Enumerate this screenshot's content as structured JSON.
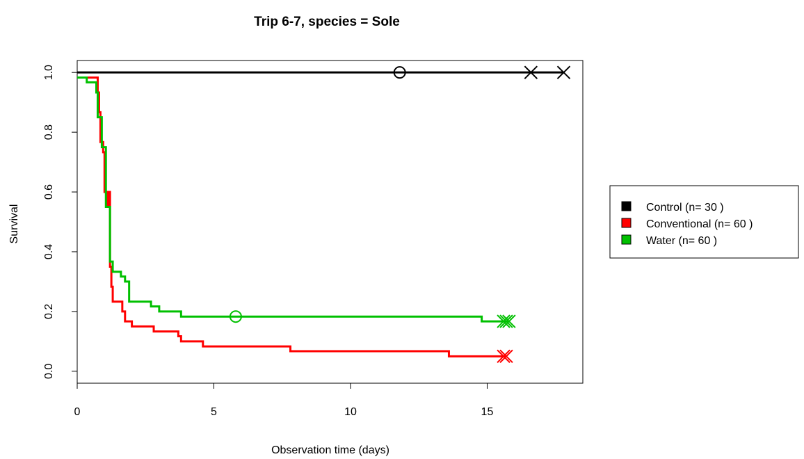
{
  "chart_data": {
    "type": "line",
    "subtype": "kaplan-meier step survival curves",
    "title": "Trip 6-7, species = Sole",
    "xlabel": "Observation time (days)",
    "ylabel": "Survival",
    "xlim": [
      0,
      18.5
    ],
    "ylim": [
      -0.04,
      1.04
    ],
    "xticks": [
      0,
      5,
      10,
      15
    ],
    "yticks": [
      0.0,
      0.2,
      0.4,
      0.6,
      0.8,
      1.0
    ],
    "ytick_labels": [
      "0.0",
      "0.2",
      "0.4",
      "0.6",
      "0.8",
      "1.0"
    ],
    "grid": false,
    "legend_position": "right, outside plot",
    "series": [
      {
        "name": "Control (n= 30 )",
        "color": "#000000",
        "steps": [
          [
            0,
            1.0
          ],
          [
            17.8,
            1.0
          ]
        ],
        "circle_markers": [
          [
            11.8,
            1.0
          ]
        ],
        "cross_markers": [
          [
            16.6,
            1.0
          ],
          [
            17.8,
            1.0
          ]
        ]
      },
      {
        "name": "Conventional (n= 60 )",
        "color": "#ff0000",
        "steps": [
          [
            0,
            0.983
          ],
          [
            0.75,
            0.933
          ],
          [
            0.8,
            0.867
          ],
          [
            0.85,
            0.767
          ],
          [
            0.95,
            0.733
          ],
          [
            1.0,
            0.6
          ],
          [
            1.1,
            0.55
          ],
          [
            1.15,
            0.6
          ],
          [
            1.2,
            0.35
          ],
          [
            1.25,
            0.283
          ],
          [
            1.3,
            0.233
          ],
          [
            1.65,
            0.2
          ],
          [
            1.75,
            0.167
          ],
          [
            2.0,
            0.15
          ],
          [
            2.8,
            0.133
          ],
          [
            3.7,
            0.117
          ],
          [
            3.8,
            0.1
          ],
          [
            4.6,
            0.083
          ],
          [
            7.8,
            0.067
          ],
          [
            13.6,
            0.05
          ],
          [
            15.7,
            0.05
          ]
        ],
        "circle_markers": [],
        "cross_markers": [
          [
            15.6,
            0.05
          ],
          [
            15.7,
            0.05
          ]
        ]
      },
      {
        "name": "Water (n= 60 )",
        "color": "#00c000",
        "steps": [
          [
            0,
            0.983
          ],
          [
            0.35,
            0.967
          ],
          [
            0.7,
            0.933
          ],
          [
            0.75,
            0.85
          ],
          [
            0.9,
            0.75
          ],
          [
            1.05,
            0.55
          ],
          [
            1.2,
            0.367
          ],
          [
            1.3,
            0.333
          ],
          [
            1.6,
            0.317
          ],
          [
            1.75,
            0.3
          ],
          [
            1.9,
            0.233
          ],
          [
            2.7,
            0.217
          ],
          [
            3.0,
            0.2
          ],
          [
            3.8,
            0.183
          ],
          [
            14.8,
            0.167
          ],
          [
            15.8,
            0.167
          ]
        ],
        "circle_markers": [
          [
            5.8,
            0.183
          ]
        ],
        "cross_markers": [
          [
            15.6,
            0.167
          ],
          [
            15.7,
            0.167
          ],
          [
            15.8,
            0.167
          ]
        ]
      }
    ]
  }
}
